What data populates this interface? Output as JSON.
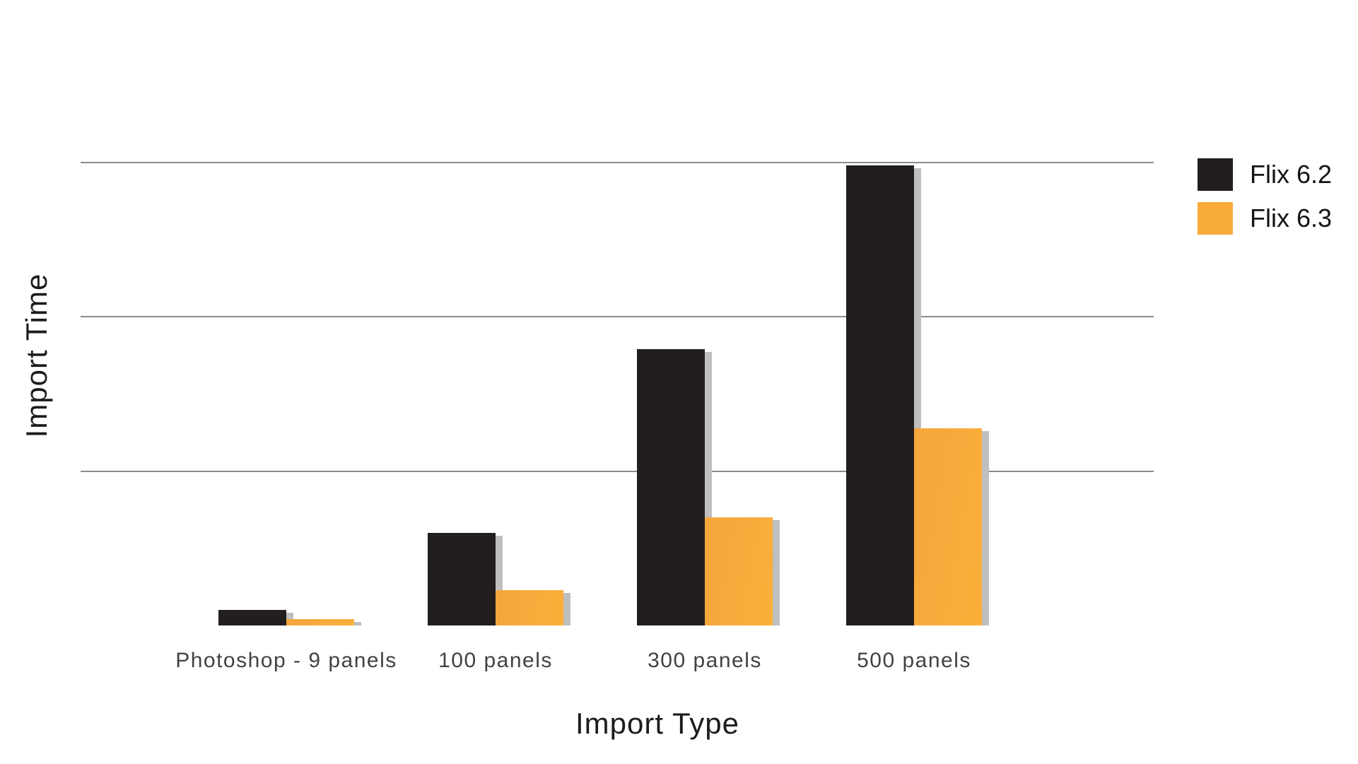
{
  "chart_data": {
    "type": "bar",
    "title": "",
    "xlabel": "Import Type",
    "ylabel": "Import Time",
    "categories": [
      "Photoshop - 9 panels",
      "100 panels",
      "300 panels",
      "500 panels"
    ],
    "series": [
      {
        "name": "Flix 6.2",
        "color": "#221e1f",
        "values": [
          0.1,
          0.6,
          1.79,
          2.98
        ]
      },
      {
        "name": "Flix 6.3",
        "color": "#f9ab3b",
        "values": [
          0.04,
          0.23,
          0.7,
          1.28
        ]
      }
    ],
    "ylim": [
      0,
      3
    ],
    "y_tick_labels_shown": false,
    "gridline_values": [
      1,
      2,
      3
    ],
    "grid": true,
    "legend_position": "top-right",
    "note": "No numeric y-axis tick labels are visible; values are in gridline units (1 unit = one gridline spacing)."
  },
  "axes": {
    "x_title": "Import Type",
    "y_title": "Import Time"
  },
  "legend": {
    "items": [
      {
        "label": "Flix 6.2",
        "color": "#221e1f"
      },
      {
        "label": "Flix 6.3",
        "color": "#f9ab3b"
      }
    ]
  },
  "colors": {
    "background": "#ffffff",
    "bar_shadow": "#bfbfbf",
    "gridline": "#8a8a8a",
    "tick_text": "#424242",
    "axis_title_text": "#1c1c1c"
  }
}
